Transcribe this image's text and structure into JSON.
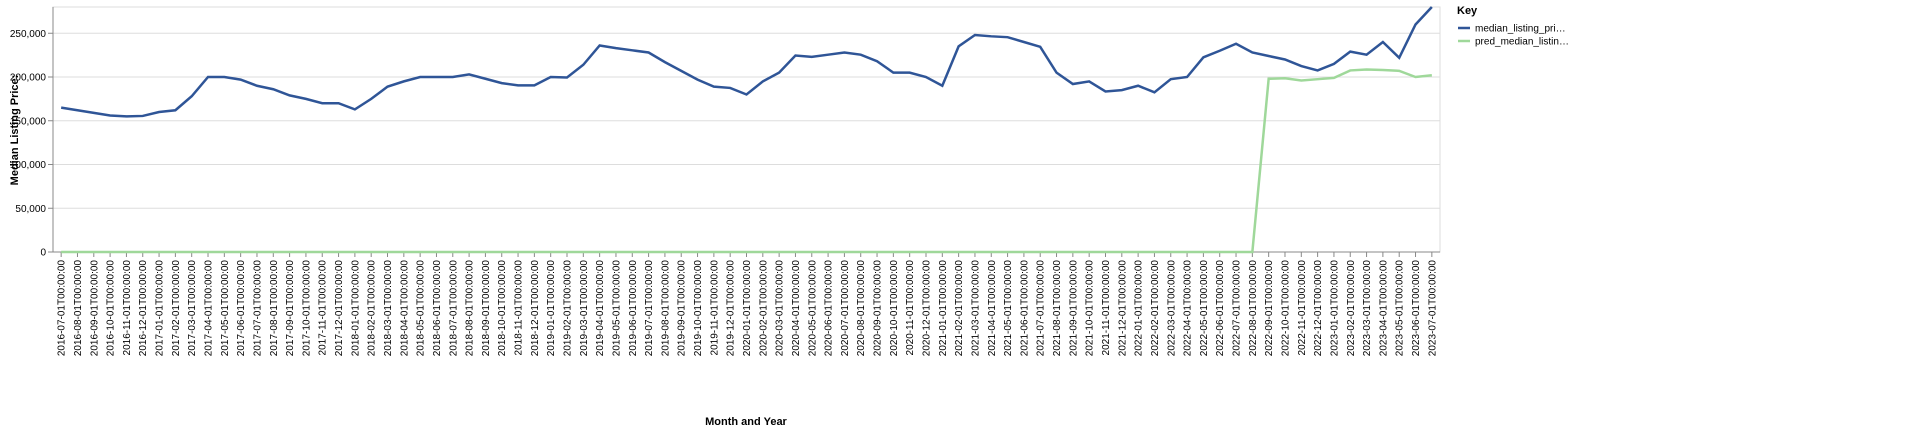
{
  "chart_data": {
    "type": "line",
    "x_label": "Month and Year",
    "y_label": "Median Listing Price:",
    "legend_title": "Key",
    "legend_position": "right",
    "grid": true,
    "categories": [
      "2016-07-01T00:00:00",
      "2016-08-01T00:00:00",
      "2016-09-01T00:00:00",
      "2016-10-01T00:00:00",
      "2016-11-01T00:00:00",
      "2016-12-01T00:00:00",
      "2017-01-01T00:00:00",
      "2017-02-01T00:00:00",
      "2017-03-01T00:00:00",
      "2017-04-01T00:00:00",
      "2017-05-01T00:00:00",
      "2017-06-01T00:00:00",
      "2017-07-01T00:00:00",
      "2017-08-01T00:00:00",
      "2017-09-01T00:00:00",
      "2017-10-01T00:00:00",
      "2017-11-01T00:00:00",
      "2017-12-01T00:00:00",
      "2018-01-01T00:00:00",
      "2018-02-01T00:00:00",
      "2018-03-01T00:00:00",
      "2018-04-01T00:00:00",
      "2018-05-01T00:00:00",
      "2018-06-01T00:00:00",
      "2018-07-01T00:00:00",
      "2018-08-01T00:00:00",
      "2018-09-01T00:00:00",
      "2018-10-01T00:00:00",
      "2018-11-01T00:00:00",
      "2018-12-01T00:00:00",
      "2019-01-01T00:00:00",
      "2019-02-01T00:00:00",
      "2019-03-01T00:00:00",
      "2019-04-01T00:00:00",
      "2019-05-01T00:00:00",
      "2019-06-01T00:00:00",
      "2019-07-01T00:00:00",
      "2019-08-01T00:00:00",
      "2019-09-01T00:00:00",
      "2019-10-01T00:00:00",
      "2019-11-01T00:00:00",
      "2019-12-01T00:00:00",
      "2020-01-01T00:00:00",
      "2020-02-01T00:00:00",
      "2020-03-01T00:00:00",
      "2020-04-01T00:00:00",
      "2020-05-01T00:00:00",
      "2020-06-01T00:00:00",
      "2020-07-01T00:00:00",
      "2020-08-01T00:00:00",
      "2020-09-01T00:00:00",
      "2020-10-01T00:00:00",
      "2020-11-01T00:00:00",
      "2020-12-01T00:00:00",
      "2021-01-01T00:00:00",
      "2021-02-01T00:00:00",
      "2021-03-01T00:00:00",
      "2021-04-01T00:00:00",
      "2021-05-01T00:00:00",
      "2021-06-01T00:00:00",
      "2021-07-01T00:00:00",
      "2021-08-01T00:00:00",
      "2021-09-01T00:00:00",
      "2021-10-01T00:00:00",
      "2021-11-01T00:00:00",
      "2021-12-01T00:00:00",
      "2022-01-01T00:00:00",
      "2022-02-01T00:00:00",
      "2022-03-01T00:00:00",
      "2022-04-01T00:00:00",
      "2022-05-01T00:00:00",
      "2022-06-01T00:00:00",
      "2022-07-01T00:00:00",
      "2022-08-01T00:00:00",
      "2022-09-01T00:00:00",
      "2022-10-01T00:00:00",
      "2022-11-01T00:00:00",
      "2022-12-01T00:00:00",
      "2023-01-01T00:00:00",
      "2023-02-01T00:00:00",
      "2023-03-01T00:00:00",
      "2023-04-01T00:00:00",
      "2023-05-01T00:00:00",
      "2023-06-01T00:00:00",
      "2023-07-01T00:00:00"
    ],
    "series": [
      {
        "name": "median_listing_pri…",
        "color": "#2f5597",
        "values": [
          165000,
          162000,
          159000,
          156000,
          155000,
          155500,
          160000,
          162000,
          178000,
          200000,
          200000,
          197000,
          190000,
          186000,
          179000,
          175000,
          170000,
          170000,
          163000,
          175000,
          189000,
          195000,
          200000,
          200000,
          200000,
          203000,
          198000,
          193000,
          190500,
          190500,
          200000,
          199500,
          214000,
          236000,
          233000,
          230500,
          228000,
          217000,
          207000,
          197000,
          189000,
          187500,
          180000,
          195000,
          205000,
          224500,
          223000,
          225500,
          228000,
          225500,
          218000,
          205000,
          205000,
          200000,
          190000,
          235000,
          248000,
          246500,
          245500,
          240000,
          234500,
          205000,
          192000,
          195000,
          183500,
          185000,
          190000,
          182500,
          197500,
          200000,
          222500,
          230000,
          238000,
          228000,
          224000,
          220000,
          212500,
          207500,
          215000,
          229000,
          225500,
          240000,
          222000,
          260000,
          280000
        ]
      },
      {
        "name": "pred_median_listin…",
        "color": "#9fd89a",
        "values": [
          0,
          0,
          0,
          0,
          0,
          0,
          0,
          0,
          0,
          0,
          0,
          0,
          0,
          0,
          0,
          0,
          0,
          0,
          0,
          0,
          0,
          0,
          0,
          0,
          0,
          0,
          0,
          0,
          0,
          0,
          0,
          0,
          0,
          0,
          0,
          0,
          0,
          0,
          0,
          0,
          0,
          0,
          0,
          0,
          0,
          0,
          0,
          0,
          0,
          0,
          0,
          0,
          0,
          0,
          0,
          0,
          0,
          0,
          0,
          0,
          0,
          0,
          0,
          0,
          0,
          0,
          0,
          0,
          0,
          0,
          0,
          0,
          0,
          0,
          198000,
          198500,
          196000,
          197500,
          199000,
          207500,
          208500,
          208000,
          207000,
          200000,
          202000
        ]
      }
    ],
    "ylim": [
      0,
      280000
    ],
    "yticks": [
      0,
      {
        "value": 50000,
        "label": "50,000"
      },
      {
        "value": 100000,
        "label": "100,000"
      },
      {
        "value": 150000,
        "label": "150,000"
      },
      {
        "value": 200000,
        "label": "200,000"
      },
      {
        "value": 250000,
        "label": "250,000"
      }
    ]
  }
}
